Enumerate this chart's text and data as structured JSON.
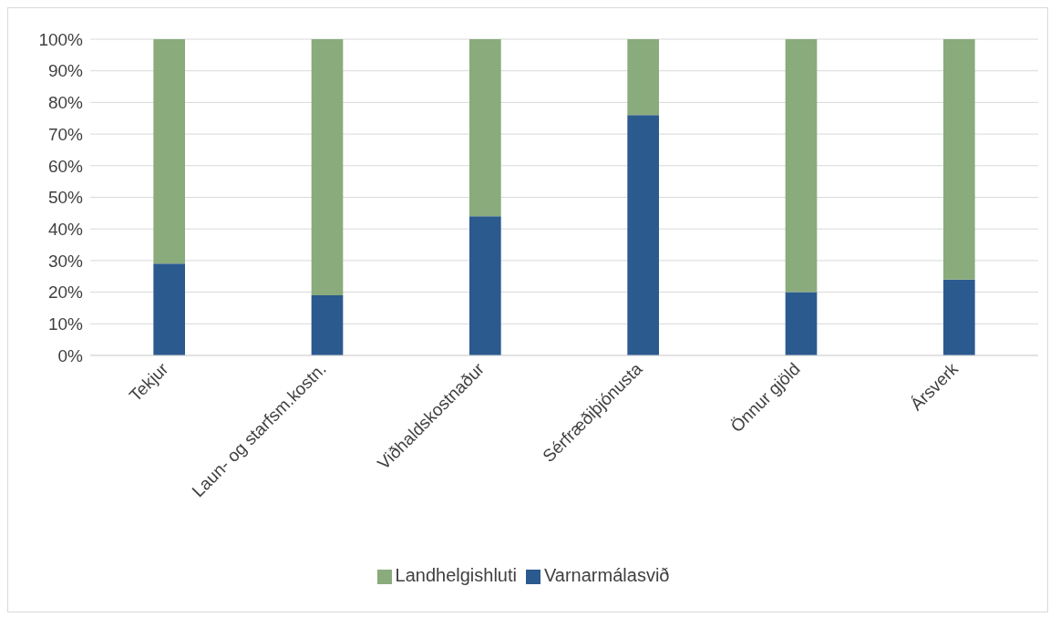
{
  "chart_data": {
    "type": "bar",
    "stacked": true,
    "categories": [
      "Tekjur",
      "Laun- og starfsm.kostn.",
      "Viðhaldskostnaður",
      "Sérfræðiþjónusta",
      "Önnur gjöld",
      "Ársverk"
    ],
    "series": [
      {
        "name": "Varnarmálasvið",
        "color": "#2b5a8f",
        "values": [
          29,
          19,
          44,
          76,
          20,
          24
        ]
      },
      {
        "name": "Landhelgishluti",
        "color": "#8aab7c",
        "values": [
          71,
          81,
          56,
          24,
          80,
          76
        ]
      }
    ],
    "ylim": [
      0,
      100
    ],
    "yticks": [
      {
        "value": 0,
        "label": "0%"
      },
      {
        "value": 10,
        "label": "10%"
      },
      {
        "value": 20,
        "label": "20%"
      },
      {
        "value": 30,
        "label": "30%"
      },
      {
        "value": 40,
        "label": "40%"
      },
      {
        "value": 50,
        "label": "50%"
      },
      {
        "value": 60,
        "label": "60%"
      },
      {
        "value": 70,
        "label": "70%"
      },
      {
        "value": 80,
        "label": "80%"
      },
      {
        "value": 90,
        "label": "90%"
      },
      {
        "value": 100,
        "label": "100%"
      }
    ],
    "grid": "y",
    "legend": "bottom"
  }
}
